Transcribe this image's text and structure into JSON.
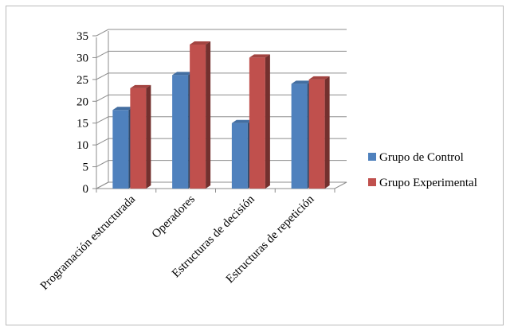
{
  "chart_data": {
    "type": "bar",
    "title": "",
    "xlabel": "",
    "ylabel": "",
    "categories": [
      "Programación estructurada",
      "Operadores",
      "Estructuras de decisión",
      "Estructuras de repetición"
    ],
    "series": [
      {
        "name": "Grupo de Control",
        "values": [
          18,
          26,
          15,
          24
        ],
        "color": "#4f81bd"
      },
      {
        "name": "Grupo Experimental",
        "values": [
          23,
          33,
          30,
          25
        ],
        "color": "#c0504d"
      }
    ],
    "ylim": [
      0,
      35
    ],
    "yticks": [
      0,
      5,
      10,
      15,
      20,
      25,
      30,
      35
    ],
    "grid": true,
    "legend_position": "right",
    "style": "3d-clustered-column"
  }
}
